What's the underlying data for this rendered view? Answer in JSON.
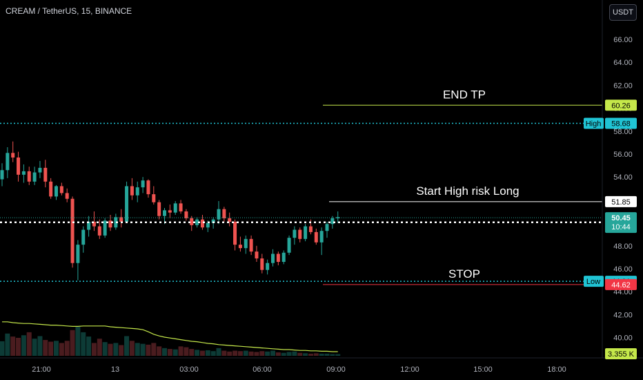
{
  "header": {
    "title": "CREAM / TetherUS, 15, BINANCE",
    "currency_button": "USDT"
  },
  "chart_data": {
    "type": "candlestick",
    "y_ticks": [
      "66.00",
      "64.00",
      "62.00",
      "60.00",
      "58.00",
      "56.00",
      "54.00",
      "52.00",
      "50.00",
      "48.00",
      "46.00",
      "44.00",
      "42.00",
      "40.00"
    ],
    "x_ticks": [
      "21:00",
      "13",
      "03:00",
      "06:00",
      "09:00",
      "12:00",
      "15:00",
      "18:00"
    ],
    "ylim": [
      38.4,
      67.3
    ],
    "annotations": [
      {
        "text": "END TP",
        "value": 60.26
      },
      {
        "text": "Start High risk Long",
        "value": 51.85
      },
      {
        "text": "STOP",
        "value": 44.62
      }
    ],
    "price_labels": [
      {
        "text": "60.26",
        "value": 60.26,
        "bg": "#c5e84a",
        "fg": "#000000"
      },
      {
        "text": "58.68",
        "value": 58.68,
        "bg": "#20c4d4",
        "fg": "#000000",
        "tag": "High"
      },
      {
        "text": "51.85",
        "value": 51.85,
        "bg": "#ffffff",
        "fg": "#000000"
      },
      {
        "text": "50.45",
        "sub": "10:44",
        "value": 50.45,
        "bg": "#26a69a",
        "fg": "#ffffff"
      },
      {
        "text": "44.91",
        "value": 44.91,
        "bg": "#20c4d4",
        "fg": "#000000",
        "tag": "Low"
      },
      {
        "text": "44.62",
        "value": 44.62,
        "bg": "#f23645",
        "fg": "#ffffff"
      }
    ],
    "volume_label": "3.355 K",
    "lines": {
      "high": 58.68,
      "low": 44.91,
      "current": 50.45,
      "current_dotted": 50.05
    },
    "colors": {
      "up": "#26a69a",
      "down": "#ef5350",
      "tp": "#c5e84a",
      "hl": "#20c4d4",
      "stop": "#f23645",
      "long": "#ffffff",
      "ma": "#c5e84a"
    },
    "candles": [
      [
        53.8,
        55.2,
        53.2,
        54.6
      ],
      [
        54.6,
        56.6,
        53.9,
        56.1
      ],
      [
        56.1,
        57.1,
        55.3,
        55.7
      ],
      [
        55.7,
        56.2,
        53.6,
        54.2
      ],
      [
        54.2,
        55.1,
        53.5,
        54.5
      ],
      [
        54.5,
        54.9,
        53.3,
        53.6
      ],
      [
        53.6,
        54.9,
        53.3,
        54.4
      ],
      [
        54.4,
        55.4,
        53.9,
        54.8
      ],
      [
        54.8,
        55.5,
        53.1,
        53.6
      ],
      [
        53.6,
        53.9,
        52.1,
        52.3
      ],
      [
        52.3,
        53.3,
        52.0,
        53.2
      ],
      [
        53.2,
        53.5,
        52.4,
        52.6
      ],
      [
        52.6,
        53.0,
        51.8,
        52.1
      ],
      [
        52.1,
        52.3,
        46.1,
        46.5
      ],
      [
        46.5,
        48.5,
        45.0,
        48.1
      ],
      [
        48.1,
        49.7,
        47.4,
        49.4
      ],
      [
        49.4,
        50.6,
        48.8,
        50.1
      ],
      [
        50.1,
        51.0,
        49.3,
        49.7
      ],
      [
        49.7,
        50.3,
        48.6,
        48.9
      ],
      [
        48.9,
        50.4,
        48.7,
        50.2
      ],
      [
        50.2,
        50.7,
        49.3,
        49.6
      ],
      [
        49.6,
        50.8,
        49.4,
        50.5
      ],
      [
        50.5,
        51.2,
        49.6,
        50.1
      ],
      [
        50.1,
        53.6,
        50.0,
        53.2
      ],
      [
        53.2,
        53.9,
        52.0,
        52.4
      ],
      [
        52.4,
        53.6,
        51.8,
        53.1
      ],
      [
        53.1,
        54.0,
        52.6,
        53.7
      ],
      [
        53.7,
        53.8,
        52.2,
        52.5
      ],
      [
        52.5,
        53.2,
        51.6,
        51.8
      ],
      [
        51.8,
        52.0,
        50.3,
        50.6
      ],
      [
        50.6,
        51.3,
        49.9,
        51.1
      ],
      [
        51.1,
        51.6,
        50.4,
        50.9
      ],
      [
        50.9,
        51.9,
        50.7,
        51.7
      ],
      [
        51.7,
        52.0,
        50.8,
        51.0
      ],
      [
        51.0,
        51.2,
        50.2,
        50.4
      ],
      [
        50.4,
        50.6,
        49.3,
        49.8
      ],
      [
        49.8,
        50.5,
        49.6,
        50.3
      ],
      [
        50.3,
        50.7,
        49.4,
        49.6
      ],
      [
        49.6,
        50.2,
        49.2,
        50.0
      ],
      [
        50.0,
        50.5,
        49.5,
        50.3
      ],
      [
        50.3,
        51.9,
        49.9,
        51.2
      ],
      [
        51.2,
        51.4,
        50.1,
        50.4
      ],
      [
        50.4,
        50.9,
        49.7,
        50.1
      ],
      [
        50.1,
        50.3,
        47.6,
        48.1
      ],
      [
        48.1,
        48.8,
        47.5,
        47.8
      ],
      [
        47.8,
        48.9,
        47.3,
        48.6
      ],
      [
        48.6,
        48.9,
        47.2,
        47.5
      ],
      [
        47.5,
        48.0,
        46.6,
        46.9
      ],
      [
        46.9,
        47.3,
        45.6,
        45.9
      ],
      [
        45.9,
        46.8,
        45.5,
        46.5
      ],
      [
        46.5,
        47.7,
        46.2,
        47.3
      ],
      [
        47.3,
        47.5,
        46.3,
        46.6
      ],
      [
        46.6,
        47.6,
        46.4,
        47.4
      ],
      [
        47.4,
        48.9,
        47.2,
        48.7
      ],
      [
        48.7,
        49.7,
        48.1,
        49.4
      ],
      [
        49.4,
        49.6,
        48.3,
        48.6
      ],
      [
        48.6,
        49.9,
        48.4,
        49.7
      ],
      [
        49.7,
        50.3,
        49.0,
        49.2
      ],
      [
        49.2,
        49.5,
        48.1,
        48.3
      ],
      [
        48.3,
        49.6,
        47.2,
        49.3
      ],
      [
        49.3,
        50.1,
        48.7,
        49.9
      ],
      [
        49.9,
        50.6,
        49.5,
        50.4
      ],
      [
        50.4,
        51.0,
        50.0,
        50.5
      ]
    ],
    "volumes": [
      0.34,
      0.52,
      0.45,
      0.42,
      0.48,
      0.55,
      0.4,
      0.46,
      0.37,
      0.33,
      0.35,
      0.3,
      0.35,
      0.6,
      0.68,
      0.55,
      0.45,
      0.3,
      0.4,
      0.32,
      0.28,
      0.3,
      0.25,
      0.46,
      0.35,
      0.3,
      0.28,
      0.26,
      0.3,
      0.22,
      0.18,
      0.16,
      0.15,
      0.22,
      0.2,
      0.16,
      0.14,
      0.12,
      0.13,
      0.11,
      0.18,
      0.12,
      0.1,
      0.12,
      0.11,
      0.12,
      0.1,
      0.09,
      0.11,
      0.1,
      0.12,
      0.08,
      0.07,
      0.09,
      0.1,
      0.07,
      0.06,
      0.05,
      0.06,
      0.05,
      0.05,
      0.04,
      0.04
    ],
    "volume_ma": [
      0.82,
      0.82,
      0.8,
      0.79,
      0.78,
      0.78,
      0.77,
      0.76,
      0.75,
      0.74,
      0.74,
      0.73,
      0.72,
      0.71,
      0.71,
      0.72,
      0.72,
      0.72,
      0.72,
      0.72,
      0.7,
      0.69,
      0.68,
      0.67,
      0.66,
      0.65,
      0.63,
      0.58,
      0.52,
      0.48,
      0.45,
      0.43,
      0.41,
      0.39,
      0.37,
      0.35,
      0.34,
      0.32,
      0.3,
      0.29,
      0.27,
      0.26,
      0.25,
      0.24,
      0.23,
      0.22,
      0.21,
      0.2,
      0.19,
      0.18,
      0.17,
      0.16,
      0.15,
      0.15,
      0.14,
      0.13,
      0.13,
      0.12,
      0.12,
      0.11,
      0.11,
      0.1,
      0.1
    ]
  }
}
